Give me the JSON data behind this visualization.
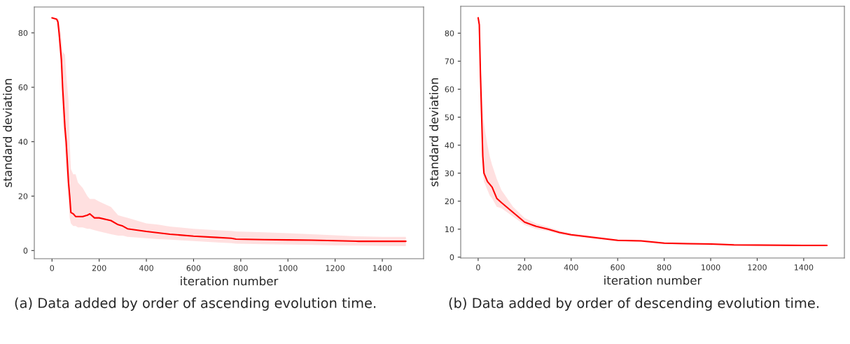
{
  "chart_data": [
    {
      "type": "line",
      "xlabel": "iteration number",
      "ylabel": "standard deviation",
      "xlim": [
        -75,
        1575
      ],
      "ylim": [
        -3,
        89.5
      ],
      "xticks": [
        0,
        200,
        400,
        600,
        800,
        1000,
        1200,
        1400
      ],
      "yticks": [
        0,
        20,
        40,
        60,
        80
      ],
      "grid": false,
      "legend": false,
      "line_style": "solid",
      "marker": "none",
      "annotations": [
        "(a) Data added by order of ascending evolution time."
      ],
      "series": [
        {
          "color": "#ff0000",
          "x": [
            0,
            20,
            25,
            30,
            40,
            45,
            55,
            60,
            70,
            75,
            80,
            90,
            100,
            110,
            130,
            150,
            160,
            180,
            200,
            250,
            280,
            300,
            320,
            400,
            450,
            500,
            600,
            700,
            760,
            780,
            900,
            1000,
            1100,
            1200,
            1300,
            1400,
            1500
          ],
          "values": [
            85.5,
            85,
            84,
            80,
            70,
            60,
            45,
            40,
            25,
            20,
            14,
            13.5,
            12.5,
            12.5,
            12.5,
            13,
            13.5,
            12,
            12,
            11,
            9.5,
            9,
            8,
            7,
            6.5,
            6,
            5.3,
            4.8,
            4.5,
            4.2,
            4.0,
            3.9,
            3.8,
            3.6,
            3.4,
            3.4,
            3.4
          ],
          "lower": [
            85.5,
            85,
            82,
            76,
            62,
            50,
            38,
            30,
            18,
            12,
            10,
            9,
            9,
            8.5,
            8.5,
            8,
            8,
            7.5,
            7,
            6,
            5.5,
            5.5,
            5,
            4.5,
            4.2,
            4,
            3.5,
            3,
            2.7,
            2.5,
            2.3,
            2.2,
            2.1,
            1.9,
            1.8,
            1.7,
            1.6
          ],
          "upper": [
            85.5,
            85,
            85,
            85,
            78,
            73,
            72,
            65,
            55,
            40,
            30,
            28,
            28,
            25,
            23,
            20,
            19,
            19,
            18,
            16,
            13,
            12.5,
            12,
            10,
            9.5,
            8.8,
            8,
            7.5,
            7.2,
            7,
            6.7,
            6.4,
            6,
            5.6,
            5.2,
            5,
            5
          ]
        }
      ]
    },
    {
      "type": "line",
      "xlabel": "iteration number",
      "ylabel": "standard deviation",
      "xlim": [
        -75,
        1575
      ],
      "ylim": [
        -0.3,
        89.6
      ],
      "xticks": [
        0,
        200,
        400,
        600,
        800,
        1000,
        1200,
        1400
      ],
      "yticks": [
        0,
        10,
        20,
        30,
        40,
        50,
        60,
        70,
        80
      ],
      "grid": false,
      "legend": false,
      "line_style": "solid",
      "marker": "none",
      "annotations": [
        "(b) Data added by order of descending evolution time."
      ],
      "series": [
        {
          "color": "#ff0000",
          "x": [
            0,
            5,
            10,
            20,
            25,
            30,
            40,
            50,
            60,
            80,
            100,
            150,
            200,
            250,
            300,
            350,
            400,
            500,
            600,
            700,
            800,
            900,
            1000,
            1100,
            1200,
            1400,
            1500
          ],
          "values": [
            85.5,
            83,
            65,
            36,
            30,
            29,
            27,
            26,
            25,
            21,
            19.5,
            16,
            12.5,
            11,
            10,
            8.8,
            8,
            7,
            6,
            5.8,
            5,
            4.8,
            4.7,
            4.4,
            4.3,
            4.2,
            4.2
          ],
          "lower": [
            85.5,
            82,
            60,
            30,
            27,
            26,
            24,
            22,
            21,
            18,
            17.5,
            14.5,
            11.5,
            10,
            9.3,
            8.2,
            7.5,
            6.5,
            5.6,
            5.4,
            4.6,
            4.4,
            4.3,
            4.0,
            3.9,
            3.8,
            3.8
          ],
          "upper": [
            85.5,
            85,
            70,
            52,
            48,
            45,
            40,
            36,
            33,
            28,
            24,
            18,
            14,
            12,
            10.8,
            9.5,
            8.5,
            7.5,
            6.4,
            6.2,
            5.4,
            5.2,
            5.1,
            4.8,
            4.7,
            4.6,
            4.6
          ]
        }
      ]
    }
  ]
}
